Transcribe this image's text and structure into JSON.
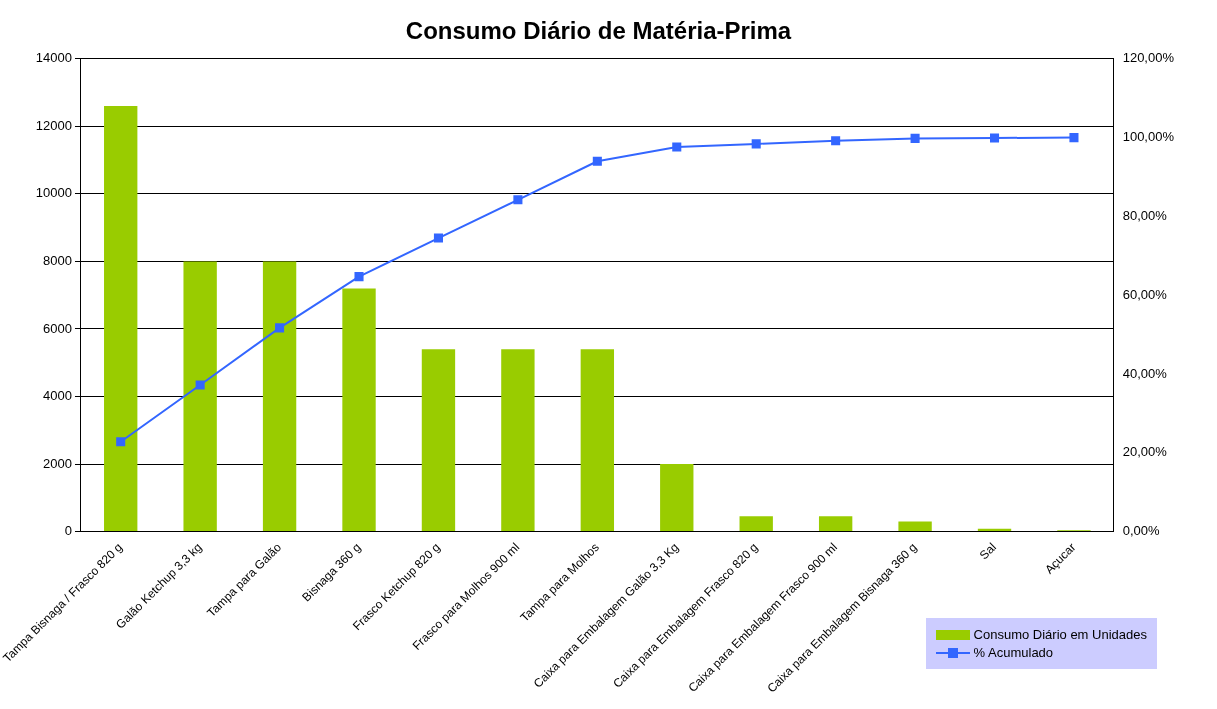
{
  "chart_data": {
    "type": "bar",
    "title": "Consumo Diário de Matéria-Prima",
    "categories": [
      "Tampa Bisnaga / Frasco 820 g",
      "Galão Ketchup 3,3 kg",
      "Tampa para Galão",
      "Bisnaga 360 g",
      "Frasco Ketchup 820 g",
      "Frasco para Molhos 900 ml",
      "Tampa para Molhos",
      "Caixa para Embalagem Galão 3,3 Kg",
      "Caixa para Embalagem Frasco 820 g",
      "Caixa para Embalagem Frasco 900 ml",
      "Caixa para Embalagem Bisnaga 360 g",
      "Sal",
      "Açucar"
    ],
    "series": [
      {
        "name": "Consumo Diário em Unidades",
        "color": "#99cc00",
        "values": [
          12600,
          8000,
          8000,
          7200,
          5400,
          5400,
          5400,
          2000,
          450,
          450,
          300,
          80,
          40
        ]
      },
      {
        "name": "% Acumulado",
        "type": "line",
        "axis": "y2",
        "color": "#3366ff",
        "values": [
          22.8,
          37.2,
          51.7,
          64.7,
          74.5,
          84.2,
          94.0,
          97.6,
          98.4,
          99.2,
          99.8,
          99.9,
          100
        ]
      }
    ],
    "ylim": [
      0,
      14000
    ],
    "yticks": [
      0,
      2000,
      4000,
      6000,
      8000,
      10000,
      12000,
      14000
    ],
    "y2lim": [
      0,
      120
    ],
    "y2ticks": [
      {
        "value": 0,
        "label": "0,00%"
      },
      {
        "value": 20,
        "label": "20,00%"
      },
      {
        "value": 40,
        "label": "40,00%"
      },
      {
        "value": 60,
        "label": "60,00%"
      },
      {
        "value": 80,
        "label": "80,00%"
      },
      {
        "value": 100,
        "label": "100,00%"
      },
      {
        "value": 120,
        "label": "120,00%"
      }
    ],
    "grid": "y",
    "legend": "bottom right",
    "marker": "square",
    "line_style": "solid"
  }
}
